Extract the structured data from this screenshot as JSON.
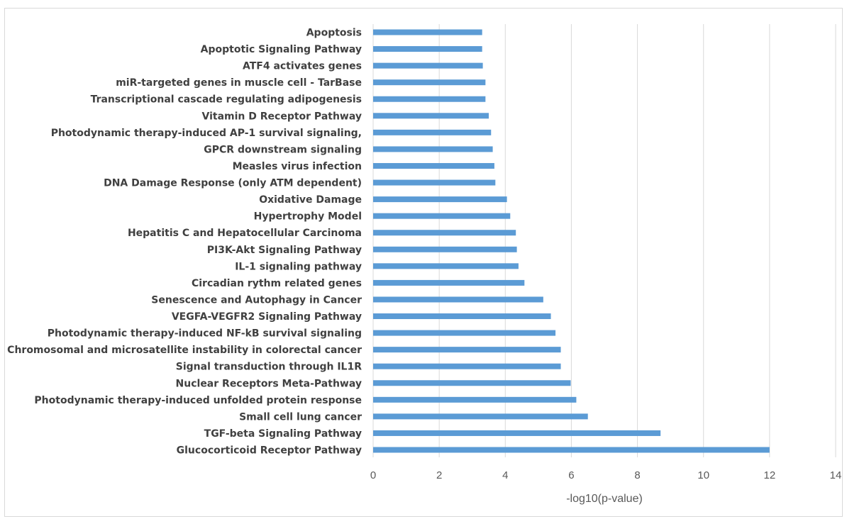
{
  "chart_data": {
    "type": "bar",
    "orientation": "horizontal",
    "title": "",
    "xlabel": "-log10(p-value)",
    "ylabel": "",
    "xlim": [
      0,
      14
    ],
    "xticks": [
      0,
      2,
      4,
      6,
      8,
      10,
      12,
      14
    ],
    "grid": "vertical",
    "legend": "none",
    "bar_color": "#5b9bd5",
    "categories": [
      "Apoptosis",
      "Apoptotic Signaling Pathway",
      "ATF4 activates genes",
      "miR-targeted genes in muscle cell - TarBase",
      "Transcriptional cascade regulating adipogenesis",
      "Vitamin D Receptor Pathway",
      "Photodynamic therapy-induced AP-1 survival signaling,",
      "GPCR downstream signaling",
      "Measles virus infection",
      "DNA Damage Response (only ATM dependent)",
      "Oxidative Damage",
      "Hypertrophy Model",
      "Hepatitis C and Hepatocellular Carcinoma",
      "PI3K-Akt Signaling Pathway",
      "IL-1 signaling pathway",
      "Circadian rythm related genes",
      "Senescence and Autophagy in Cancer",
      "VEGFA-VEGFR2 Signaling Pathway",
      "Photodynamic therapy-induced NF-kB survival signaling",
      "Chromosomal and microsatellite instability in colorectal cancer",
      "Signal transduction through IL1R",
      "Nuclear Receptors Meta-Pathway",
      "Photodynamic therapy-induced unfolded protein response",
      "Small cell lung cancer",
      "TGF-beta Signaling Pathway",
      "Glucocorticoid Receptor Pathway"
    ],
    "values": [
      3.3,
      3.3,
      3.32,
      3.4,
      3.4,
      3.5,
      3.57,
      3.62,
      3.67,
      3.7,
      4.05,
      4.15,
      4.32,
      4.35,
      4.4,
      4.58,
      5.15,
      5.38,
      5.52,
      5.68,
      5.68,
      5.98,
      6.15,
      6.5,
      8.7,
      12.0
    ]
  }
}
